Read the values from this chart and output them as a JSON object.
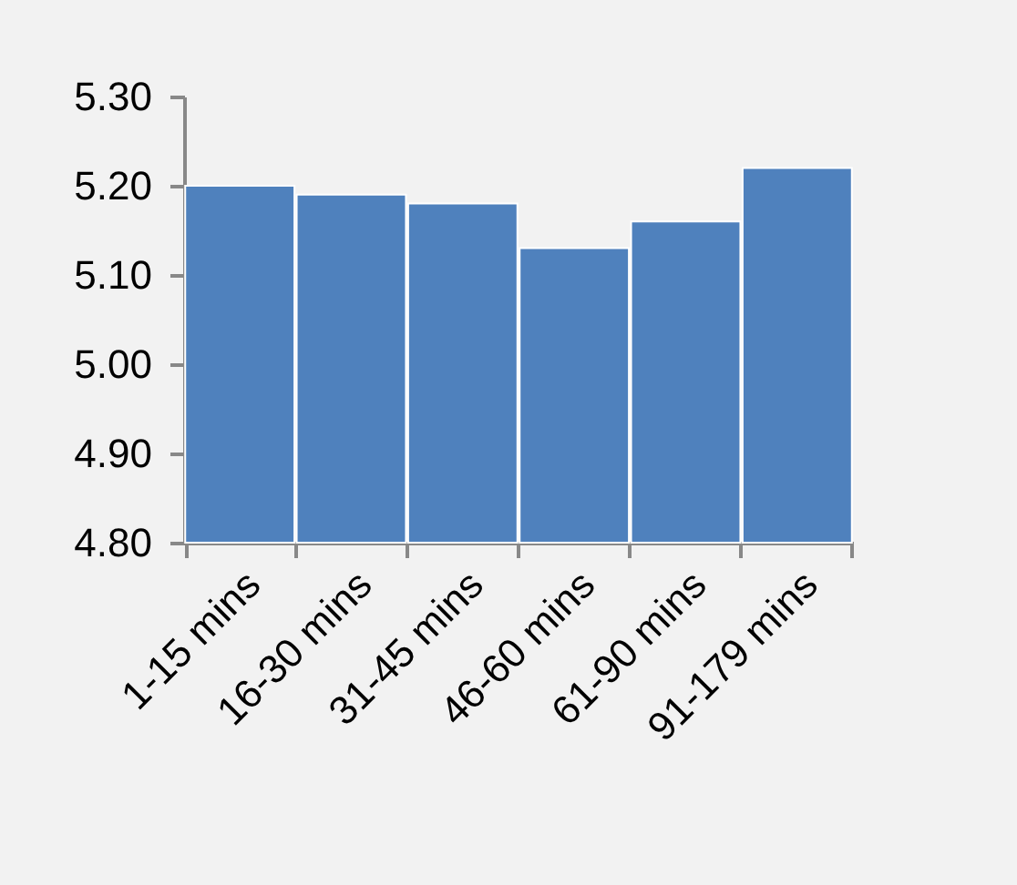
{
  "chart_data": {
    "type": "bar",
    "categories": [
      "1-15 mins",
      "16-30 mins",
      "31-45 mins",
      "46-60 mins",
      "61-90 mins",
      "91-179 mins"
    ],
    "values": [
      5.2,
      5.19,
      5.18,
      5.13,
      5.16,
      5.22
    ],
    "color": "#4f81bd",
    "ylim": [
      4.8,
      5.3
    ],
    "yticks": [
      {
        "value": 4.8,
        "label": "4.80"
      },
      {
        "value": 4.9,
        "label": "4.90"
      },
      {
        "value": 5.0,
        "label": "5.00"
      },
      {
        "value": 5.1,
        "label": "5.10"
      },
      {
        "value": 5.2,
        "label": "5.20"
      },
      {
        "value": 5.3,
        "label": "5.30"
      }
    ],
    "grid": false,
    "legend": false
  }
}
